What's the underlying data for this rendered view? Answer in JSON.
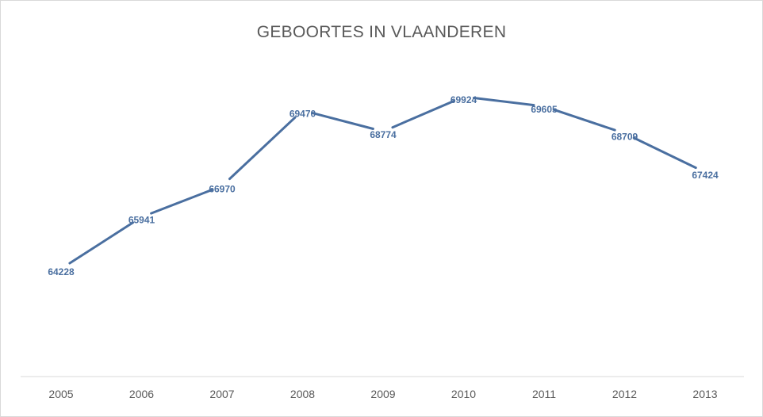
{
  "chart_data": {
    "type": "line",
    "title": "GEBOORTES IN VLAANDEREN",
    "xlabel": "",
    "ylabel": "",
    "categories": [
      "2005",
      "2006",
      "2007",
      "2008",
      "2009",
      "2010",
      "2011",
      "2012",
      "2013"
    ],
    "series": [
      {
        "values": [
          64228,
          65941,
          66970,
          69470,
          68774,
          69924,
          69605,
          68709,
          67424
        ]
      }
    ],
    "data_labels": [
      "64228",
      "65941",
      "66970",
      "69470",
      "68774",
      "69924",
      "69605",
      "68709",
      "67424"
    ],
    "grid": false,
    "legend": "none",
    "line_color": "#4a6fa0",
    "label_color": "#4a6fa0"
  }
}
